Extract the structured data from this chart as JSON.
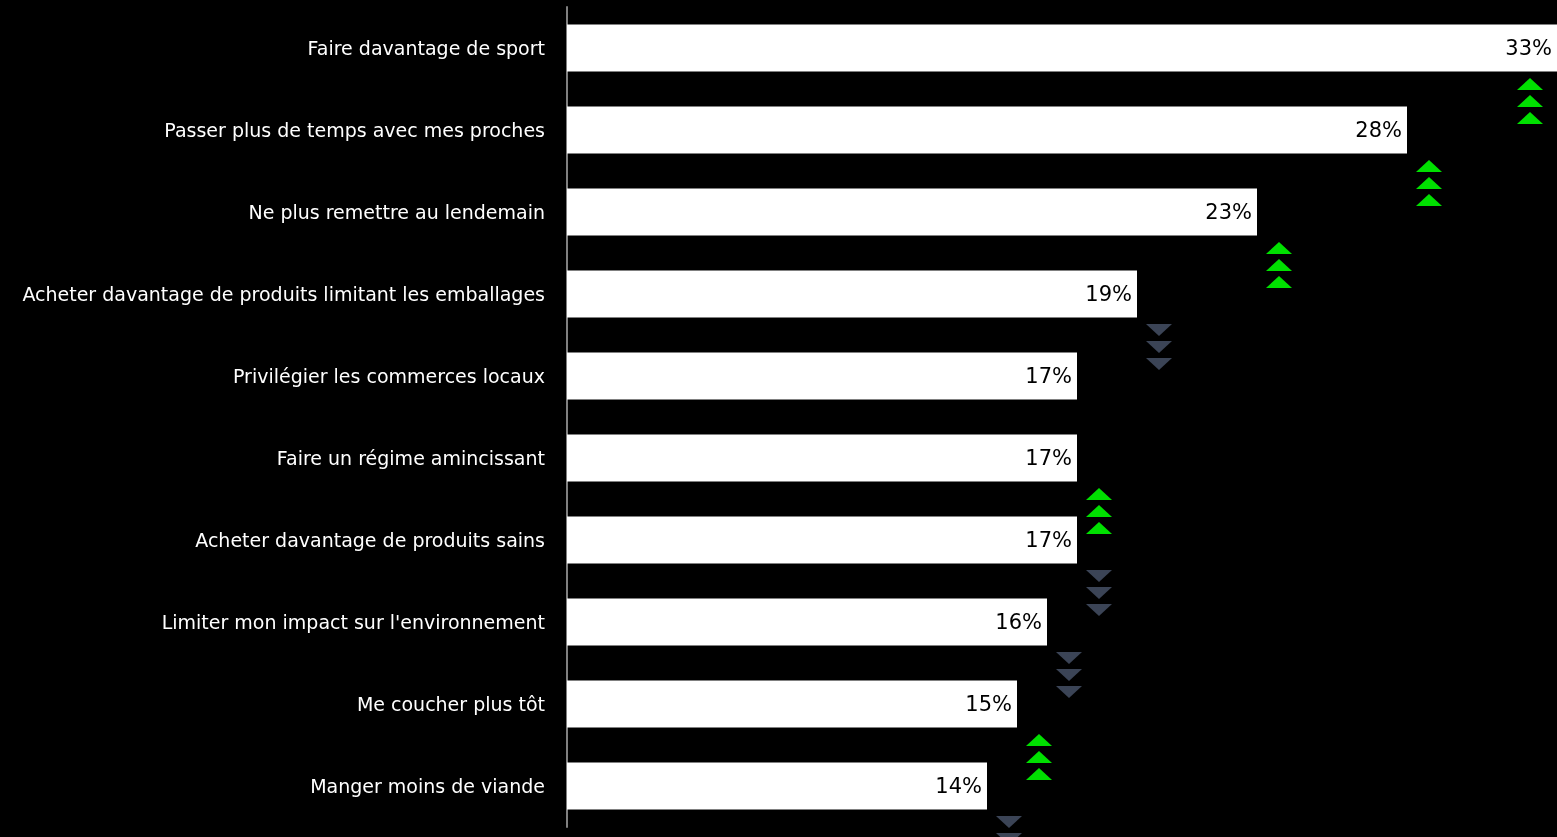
{
  "chart_data": {
    "type": "bar",
    "orientation": "horizontal",
    "categories": [
      "Faire davantage de sport",
      "Passer plus de temps avec mes proches",
      "Ne plus remettre au lendemain",
      "Acheter davantage de produits limitant les emballages",
      "Privilégier les commerces locaux",
      "Faire un régime amincissant",
      "Acheter davantage de produits sains",
      "Limiter mon impact sur l'environnement",
      "Me coucher plus tôt",
      "Manger moins de viande"
    ],
    "values": [
      33,
      28,
      23,
      19,
      17,
      17,
      17,
      16,
      15,
      14
    ],
    "value_labels": [
      "33%",
      "28%",
      "23%",
      "19%",
      "17%",
      "17%",
      "17%",
      "16%",
      "15%",
      "14%"
    ],
    "color": "#ffffff",
    "xlim": [
      0,
      33
    ]
  }
}
